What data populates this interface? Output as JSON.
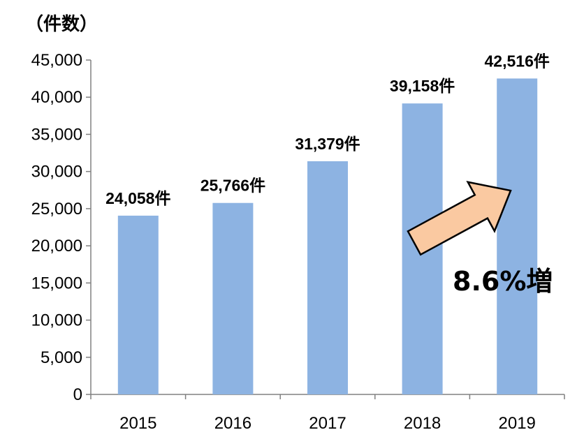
{
  "chart_data": {
    "type": "bar",
    "unit_label": "（件数）",
    "categories": [
      "2015",
      "2016",
      "2017",
      "2018",
      "2019"
    ],
    "values": [
      24058,
      25766,
      31379,
      39158,
      42516
    ],
    "data_labels": [
      "24,058件",
      "25,766件",
      "31,379件",
      "39,158件",
      "42,516件"
    ],
    "ylim": [
      0,
      45000
    ],
    "yticks": [
      0,
      5000,
      10000,
      15000,
      20000,
      25000,
      30000,
      35000,
      40000,
      45000
    ],
    "ytick_labels": [
      "0",
      "5,000",
      "10,000",
      "15,000",
      "20,000",
      "25,000",
      "30,000",
      "35,000",
      "40,000",
      "45,000"
    ],
    "annotation": "8.6%増",
    "colors": {
      "bar": "#8DB3E2",
      "arrow_fill": "#FAC9A1",
      "arrow_stroke": "#000000",
      "axis": "#808080"
    },
    "grid": false,
    "legend": "none"
  }
}
